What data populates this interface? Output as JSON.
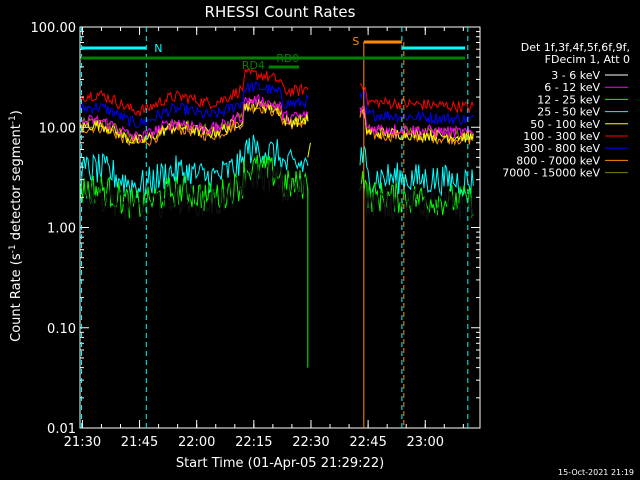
{
  "chart_data": {
    "type": "line",
    "title": "RHESSI Count Rates",
    "xlabel": "Start Time (01-Apr-05 21:29:22)",
    "ylabel": "Count Rate (s",
    "ylabel_sup1": "-1",
    "ylabel_mid": " detector segment",
    "ylabel_sup2": "-1",
    "ylabel_end": ")",
    "yscale": "log",
    "ylim": [
      0.01,
      100
    ],
    "xlim_minutes": [
      0,
      105
    ],
    "x_ticks": [
      "21:30",
      "21:45",
      "22:00",
      "22:15",
      "22:30",
      "22:45",
      "23:00"
    ],
    "y_ticks": [
      "0.01",
      "0.10",
      "1.00",
      "10.00",
      "100.00"
    ],
    "legend_header": [
      "Det 1f,3f,4f,5f,6f,9f,",
      "FDecim 1, Att 0"
    ],
    "legend_position": "right",
    "series": [
      {
        "name": "3 - 6 keV",
        "color": "#000000",
        "level": 2.0
      },
      {
        "name": "6 - 12 keV",
        "color": "#ff00ff",
        "level": 11.0
      },
      {
        "name": "12 - 25 keV",
        "color": "#00ff00",
        "level": 2.3
      },
      {
        "name": "25 - 50 keV",
        "color": "#00ffff",
        "level": 3.6
      },
      {
        "name": "50 - 100 keV",
        "color": "#ffff00",
        "level": 10.0
      },
      {
        "name": "100 - 300 keV",
        "color": "#ff0000",
        "level": 20.0
      },
      {
        "name": "300 - 800 keV",
        "color": "#0000ff",
        "level": 15.0
      },
      {
        "name": "800 - 7000 keV",
        "color": "#ff8c00",
        "level": 9.5
      },
      {
        "name": "7000 - 15000 keV",
        "color": "#808000",
        "level": 10.5
      }
    ],
    "flags": [
      {
        "label": "N",
        "color": "#00ffff"
      },
      {
        "label": "S",
        "color": "#ff8c00"
      },
      {
        "label": "RD0",
        "color": "#008000"
      },
      {
        "label": "RD4",
        "color": "#008000"
      }
    ],
    "footer_date": "15-Oct-2021 21:19"
  }
}
